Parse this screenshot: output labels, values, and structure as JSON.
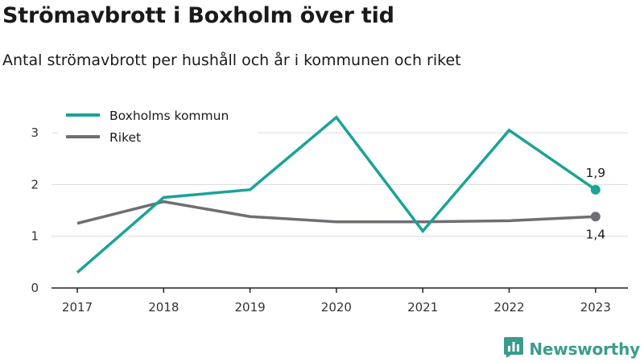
{
  "title": "Strömavbrott i Boxholm över tid",
  "subtitle": "Antal strömavbrott per hushåll och år i kommunen och riket",
  "brand": "Newsworthy",
  "colors": {
    "boxholm": "#1aa396",
    "riket": "#6e6e73",
    "brand": "#3a9d8c"
  },
  "icons": {
    "brand_logo": "bar-chart-speech-bubble-icon"
  },
  "chart_data": {
    "type": "line",
    "title": "Strömavbrott i Boxholm över tid",
    "subtitle": "Antal strömavbrott per hushåll och år i kommunen och riket",
    "x": [
      "2017",
      "2018",
      "2019",
      "2020",
      "2021",
      "2022",
      "2023"
    ],
    "yticks": [
      "0",
      "1",
      "2",
      "3"
    ],
    "ylim": [
      0,
      3.5
    ],
    "grid": true,
    "legend_position": "top-left",
    "series": [
      {
        "name": "Boxholms kommun",
        "values": [
          0.3,
          1.75,
          1.9,
          3.3,
          1.1,
          3.05,
          1.9
        ],
        "end_label": "1,9"
      },
      {
        "name": "Riket",
        "values": [
          1.25,
          1.67,
          1.38,
          1.28,
          1.28,
          1.3,
          1.38
        ],
        "end_label": "1,4"
      }
    ]
  }
}
